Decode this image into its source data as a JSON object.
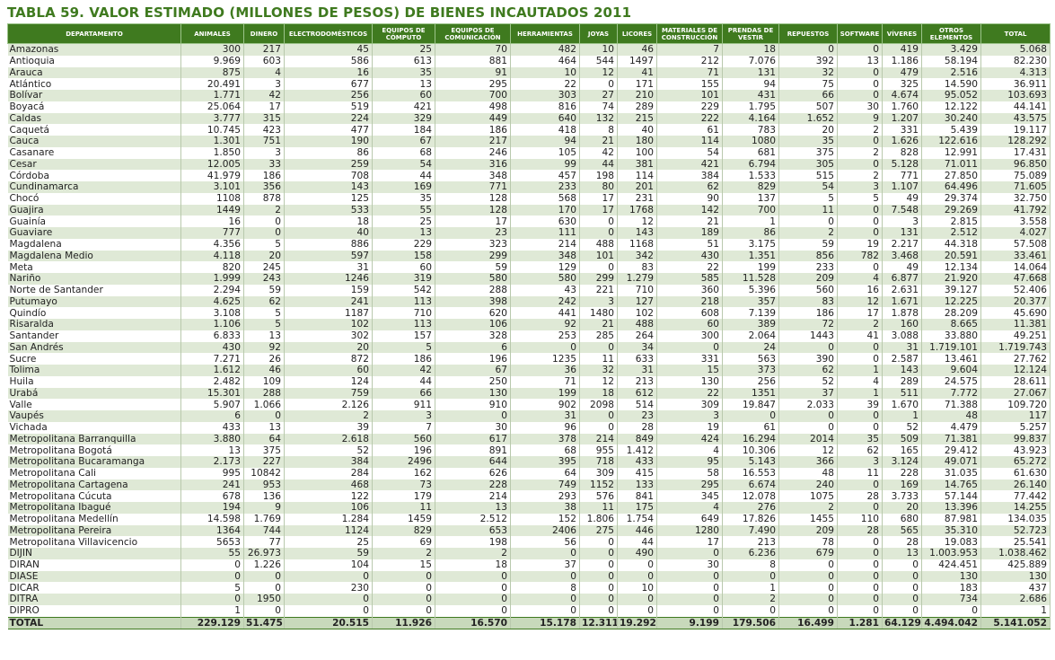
{
  "title": {
    "prefix": "TABLA 59.",
    "text": " VALOR ESTIMADO (MILLONES DE PESOS) DE BIENES INCAUTADOS 2011"
  },
  "columns": [
    "DEPARTAMENTO",
    "ANIMALES",
    "DINERO",
    "ELECTRODOMÉSTICOS",
    "EQUIPOS DE CÓMPUTO",
    "EQUIPOS DE COMUNICACIÓN",
    "HERRAMIENTAS",
    "JOYAS",
    "LICORES",
    "MATERIALES DE CONSTRUCCIÓN",
    "PRENDAS DE VESTIR",
    "REPUESTOS",
    "SOFTWARE",
    "VÍVERES",
    "OTROS ELEMENTOS",
    "TOTAL"
  ],
  "rows": [
    [
      "Amazonas",
      "300",
      "217",
      "45",
      "25",
      "70",
      "482",
      "10",
      "46",
      "7",
      "18",
      "0",
      "0",
      "419",
      "3.429",
      "5.068"
    ],
    [
      "Antioquia",
      "9.969",
      "603",
      "586",
      "613",
      "881",
      "464",
      "544",
      "1497",
      "212",
      "7.076",
      "392",
      "13",
      "1.186",
      "58.194",
      "82.230"
    ],
    [
      "Arauca",
      "875",
      "4",
      "16",
      "35",
      "91",
      "10",
      "12",
      "41",
      "71",
      "131",
      "32",
      "0",
      "479",
      "2.516",
      "4.313"
    ],
    [
      "Atlántico",
      "20.491",
      "3",
      "677",
      "13",
      "295",
      "22",
      "0",
      "171",
      "155",
      "94",
      "75",
      "0",
      "325",
      "14.590",
      "36.911"
    ],
    [
      "Bolívar",
      "1.771",
      "42",
      "256",
      "60",
      "700",
      "303",
      "27",
      "210",
      "101",
      "431",
      "66",
      "0",
      "4.674",
      "95.052",
      "103.693"
    ],
    [
      "Boyacá",
      "25.064",
      "17",
      "519",
      "421",
      "498",
      "816",
      "74",
      "289",
      "229",
      "1.795",
      "507",
      "30",
      "1.760",
      "12.122",
      "44.141"
    ],
    [
      "Caldas",
      "3.777",
      "315",
      "224",
      "329",
      "449",
      "640",
      "132",
      "215",
      "222",
      "4.164",
      "1.652",
      "9",
      "1.207",
      "30.240",
      "43.575"
    ],
    [
      "Caquetá",
      "10.745",
      "423",
      "477",
      "184",
      "186",
      "418",
      "8",
      "40",
      "61",
      "783",
      "20",
      "2",
      "331",
      "5.439",
      "19.117"
    ],
    [
      "Cauca",
      "1.301",
      "751",
      "190",
      "67",
      "217",
      "94",
      "21",
      "180",
      "114",
      "1080",
      "35",
      "0",
      "1.626",
      "122.616",
      "128.292"
    ],
    [
      "Casanare",
      "1.850",
      "3",
      "86",
      "68",
      "246",
      "105",
      "42",
      "100",
      "54",
      "681",
      "375",
      "2",
      "828",
      "12.991",
      "17.431"
    ],
    [
      "Cesar",
      "12.005",
      "33",
      "259",
      "54",
      "316",
      "99",
      "44",
      "381",
      "421",
      "6.794",
      "305",
      "0",
      "5.128",
      "71.011",
      "96.850"
    ],
    [
      "Córdoba",
      "41.979",
      "186",
      "708",
      "44",
      "348",
      "457",
      "198",
      "114",
      "384",
      "1.533",
      "515",
      "2",
      "771",
      "27.850",
      "75.089"
    ],
    [
      "Cundinamarca",
      "3.101",
      "356",
      "143",
      "169",
      "771",
      "233",
      "80",
      "201",
      "62",
      "829",
      "54",
      "3",
      "1.107",
      "64.496",
      "71.605"
    ],
    [
      "Chocó",
      "1108",
      "878",
      "125",
      "35",
      "128",
      "568",
      "17",
      "231",
      "90",
      "137",
      "5",
      "5",
      "49",
      "29.374",
      "32.750"
    ],
    [
      "Guajira",
      "1449",
      "2",
      "533",
      "55",
      "128",
      "170",
      "17",
      "1768",
      "142",
      "700",
      "11",
      "0",
      "7.548",
      "29.269",
      "41.792"
    ],
    [
      "Guainía",
      "16",
      "0",
      "18",
      "25",
      "17",
      "630",
      "0",
      "12",
      "21",
      "1",
      "0",
      "0",
      "3",
      "2.815",
      "3.558"
    ],
    [
      "Guaviare",
      "777",
      "0",
      "40",
      "13",
      "23",
      "111",
      "0",
      "143",
      "189",
      "86",
      "2",
      "0",
      "131",
      "2.512",
      "4.027"
    ],
    [
      "Magdalena",
      "4.356",
      "5",
      "886",
      "229",
      "323",
      "214",
      "488",
      "1168",
      "51",
      "3.175",
      "59",
      "19",
      "2.217",
      "44.318",
      "57.508"
    ],
    [
      "Magdalena Medio",
      "4.118",
      "20",
      "597",
      "158",
      "299",
      "348",
      "101",
      "342",
      "430",
      "1.351",
      "856",
      "782",
      "3.468",
      "20.591",
      "33.461"
    ],
    [
      "Meta",
      "820",
      "245",
      "31",
      "60",
      "59",
      "129",
      "0",
      "83",
      "22",
      "199",
      "233",
      "0",
      "49",
      "12.134",
      "14.064"
    ],
    [
      "Nariño",
      "1.999",
      "243",
      "1246",
      "319",
      "580",
      "580",
      "299",
      "1.279",
      "585",
      "11.528",
      "209",
      "4",
      "6.877",
      "21.920",
      "47.668"
    ],
    [
      "Norte de Santander",
      "2.294",
      "59",
      "159",
      "542",
      "288",
      "43",
      "221",
      "710",
      "360",
      "5.396",
      "560",
      "16",
      "2.631",
      "39.127",
      "52.406"
    ],
    [
      "Putumayo",
      "4.625",
      "62",
      "241",
      "113",
      "398",
      "242",
      "3",
      "127",
      "218",
      "357",
      "83",
      "12",
      "1.671",
      "12.225",
      "20.377"
    ],
    [
      "Quindío",
      "3.108",
      "5",
      "1187",
      "710",
      "620",
      "441",
      "1480",
      "102",
      "608",
      "7.139",
      "186",
      "17",
      "1.878",
      "28.209",
      "45.690"
    ],
    [
      "Risaralda",
      "1.106",
      "5",
      "102",
      "113",
      "106",
      "92",
      "21",
      "488",
      "60",
      "389",
      "72",
      "2",
      "160",
      "8.665",
      "11.381"
    ],
    [
      "Santander",
      "6.833",
      "13",
      "302",
      "157",
      "328",
      "253",
      "285",
      "264",
      "300",
      "2.064",
      "1443",
      "41",
      "3.088",
      "33.880",
      "49.251"
    ],
    [
      "San Andrés",
      "430",
      "92",
      "20",
      "5",
      "6",
      "0",
      "0",
      "34",
      "0",
      "24",
      "0",
      "0",
      "31",
      "1.719.101",
      "1.719.743"
    ],
    [
      "Sucre",
      "7.271",
      "26",
      "872",
      "186",
      "196",
      "1235",
      "11",
      "633",
      "331",
      "563",
      "390",
      "0",
      "2.587",
      "13.461",
      "27.762"
    ],
    [
      "Tolima",
      "1.612",
      "46",
      "60",
      "42",
      "67",
      "36",
      "32",
      "31",
      "15",
      "373",
      "62",
      "1",
      "143",
      "9.604",
      "12.124"
    ],
    [
      "Huila",
      "2.482",
      "109",
      "124",
      "44",
      "250",
      "71",
      "12",
      "213",
      "130",
      "256",
      "52",
      "4",
      "289",
      "24.575",
      "28.611"
    ],
    [
      "Urabá",
      "15.301",
      "288",
      "759",
      "66",
      "130",
      "199",
      "18",
      "612",
      "22",
      "1351",
      "37",
      "1",
      "511",
      "7.772",
      "27.067"
    ],
    [
      "Valle",
      "5.907",
      "1.066",
      "2.126",
      "911",
      "910",
      "902",
      "2098",
      "514",
      "309",
      "19.847",
      "2.033",
      "39",
      "1.670",
      "71.388",
      "109.720"
    ],
    [
      "Vaupés",
      "6",
      "0",
      "2",
      "3",
      "0",
      "31",
      "0",
      "23",
      "3",
      "0",
      "0",
      "0",
      "1",
      "48",
      "117"
    ],
    [
      "Vichada",
      "433",
      "13",
      "39",
      "7",
      "30",
      "96",
      "0",
      "28",
      "19",
      "61",
      "0",
      "0",
      "52",
      "4.479",
      "5.257"
    ],
    [
      "Metropolitana Barranquilla",
      "3.880",
      "64",
      "2.618",
      "560",
      "617",
      "378",
      "214",
      "849",
      "424",
      "16.294",
      "2014",
      "35",
      "509",
      "71.381",
      "99.837"
    ],
    [
      "Metropolitana Bogotá",
      "13",
      "375",
      "52",
      "196",
      "891",
      "68",
      "955",
      "1.412",
      "4",
      "10.306",
      "12",
      "62",
      "165",
      "29.412",
      "43.923"
    ],
    [
      "Metropolitana Bucaramanga",
      "2.173",
      "227",
      "384",
      "2496",
      "644",
      "395",
      "718",
      "433",
      "95",
      "5.143",
      "366",
      "3",
      "3.124",
      "49.071",
      "65.272"
    ],
    [
      "Metropolitana Cali",
      "995",
      "10842",
      "284",
      "162",
      "626",
      "64",
      "309",
      "415",
      "58",
      "16.553",
      "48",
      "11",
      "228",
      "31.035",
      "61.630"
    ],
    [
      "Metropolitana Cartagena",
      "241",
      "953",
      "468",
      "73",
      "228",
      "749",
      "1152",
      "133",
      "295",
      "6.674",
      "240",
      "0",
      "169",
      "14.765",
      "26.140"
    ],
    [
      "Metropolitana Cúcuta",
      "678",
      "136",
      "122",
      "179",
      "214",
      "293",
      "576",
      "841",
      "345",
      "12.078",
      "1075",
      "28",
      "3.733",
      "57.144",
      "77.442"
    ],
    [
      "Metropolitana Ibagué",
      "194",
      "9",
      "106",
      "11",
      "13",
      "38",
      "11",
      "175",
      "4",
      "276",
      "2",
      "0",
      "20",
      "13.396",
      "14.255"
    ],
    [
      "Metropolitana Medellín",
      "14.598",
      "1.769",
      "1.284",
      "1459",
      "2.512",
      "152",
      "1.806",
      "1.754",
      "649",
      "17.826",
      "1455",
      "110",
      "680",
      "87.981",
      "134.035"
    ],
    [
      "Metropolitana Pereira",
      "1364",
      "744",
      "1124",
      "829",
      "653",
      "2406",
      "275",
      "446",
      "1280",
      "7.490",
      "209",
      "28",
      "565",
      "35.310",
      "52.723"
    ],
    [
      "Metropolitana Villavicencio",
      "5653",
      "77",
      "25",
      "69",
      "198",
      "56",
      "0",
      "44",
      "17",
      "213",
      "78",
      "0",
      "28",
      "19.083",
      "25.541"
    ],
    [
      "DIJIN",
      "55",
      "26.973",
      "59",
      "2",
      "2",
      "0",
      "0",
      "490",
      "0",
      "6.236",
      "679",
      "0",
      "13",
      "1.003.953",
      "1.038.462"
    ],
    [
      "DIRAN",
      "0",
      "1.226",
      "104",
      "15",
      "18",
      "37",
      "0",
      "0",
      "30",
      "8",
      "0",
      "0",
      "0",
      "424.451",
      "425.889"
    ],
    [
      "DIASE",
      "0",
      "0",
      "0",
      "0",
      "0",
      "0",
      "0",
      "0",
      "0",
      "0",
      "0",
      "0",
      "0",
      "130",
      "130"
    ],
    [
      "DICAR",
      "5",
      "0",
      "230",
      "0",
      "0",
      "8",
      "0",
      "10",
      "0",
      "1",
      "0",
      "0",
      "0",
      "183",
      "437"
    ],
    [
      "DITRA",
      "0",
      "1950",
      "0",
      "0",
      "0",
      "0",
      "0",
      "0",
      "0",
      "2",
      "0",
      "0",
      "0",
      "734",
      "2.686"
    ],
    [
      "DIPRO",
      "1",
      "0",
      "0",
      "0",
      "0",
      "0",
      "0",
      "0",
      "0",
      "0",
      "0",
      "0",
      "0",
      "0",
      "1"
    ]
  ],
  "total": [
    "TOTAL",
    "229.129",
    "51.475",
    "20.515",
    "11.926",
    "16.570",
    "15.178",
    "12.311",
    "19.292",
    "9.199",
    "179.506",
    "16.499",
    "1.281",
    "64.129",
    "4.494.042",
    "5.141.052"
  ]
}
